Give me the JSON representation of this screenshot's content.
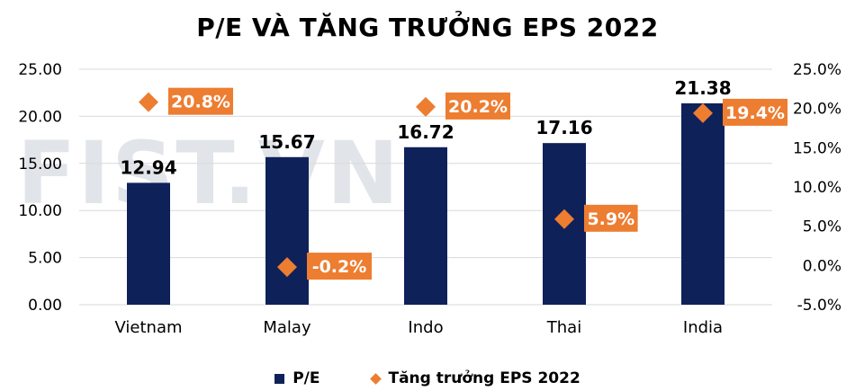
{
  "colors": {
    "bar": "#0f2159",
    "marker": "#ed7d31",
    "label_box": "#ed7d31",
    "label_text": "#ffffff",
    "axis_text": "#000000",
    "grid": "#d9d9d9",
    "watermark": "#d8dde4"
  },
  "watermark": "FIST.VN",
  "chart_data": {
    "type": "bar",
    "title": "P/E VÀ TĂNG TRƯỞNG EPS 2022",
    "categories": [
      "Vietnam",
      "Malay",
      "Indo",
      "Thai",
      "India"
    ],
    "series": [
      {
        "name": "P/E",
        "type": "bar",
        "axis": "left",
        "values": [
          12.94,
          15.67,
          16.72,
          17.16,
          21.38
        ],
        "labels": [
          "12.94",
          "15.67",
          "16.72",
          "17.16",
          "21.38"
        ]
      },
      {
        "name": "Tăng trưởng EPS 2022",
        "type": "scatter",
        "axis": "right",
        "values": [
          20.8,
          -0.2,
          20.2,
          5.9,
          19.4
        ],
        "labels": [
          "20.8%",
          "-0.2%",
          "20.2%",
          "5.9%",
          "19.4%"
        ]
      }
    ],
    "y_left": {
      "min": 0,
      "max": 25,
      "ticks": [
        "25.00",
        "20.00",
        "15.00",
        "10.00",
        "5.00",
        "0.00"
      ]
    },
    "y_right": {
      "min": -5,
      "max": 25,
      "ticks": [
        "25.0%",
        "20.0%",
        "15.0%",
        "10.0%",
        "5.0%",
        "0.0%",
        "-5.0%"
      ]
    },
    "grid": true,
    "legend_position": "bottom"
  }
}
